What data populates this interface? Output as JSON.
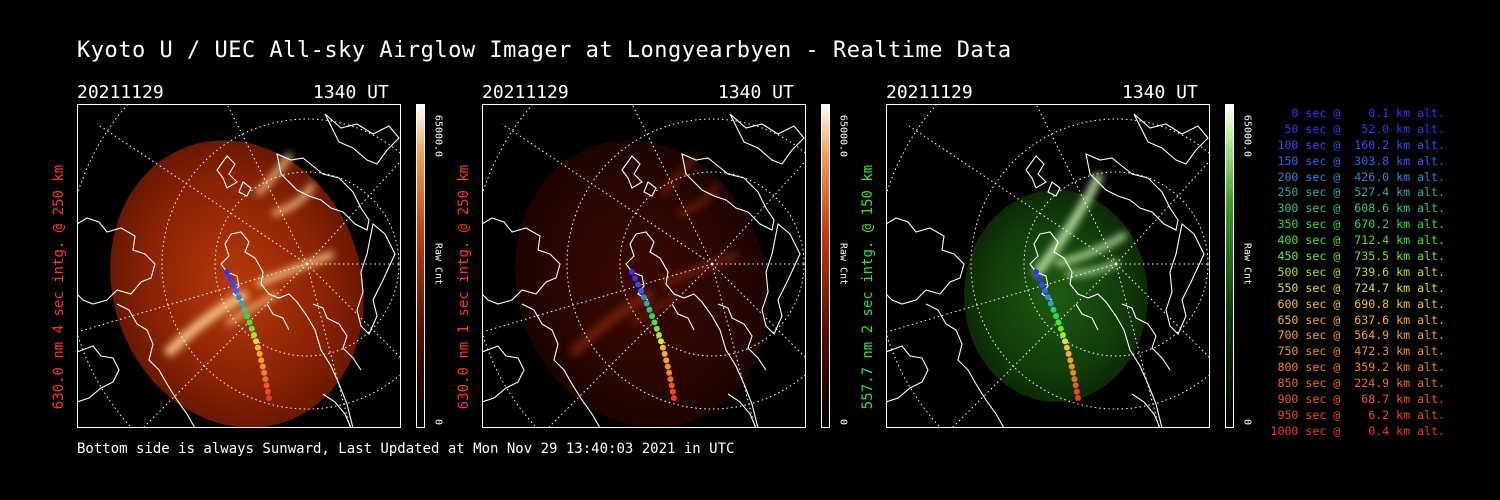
{
  "title": "Kyoto U / UEC All-sky Airglow Imager at Longyearbyen - Realtime Data",
  "footer": "Bottom side is always Sunward, Last Updated at Mon Nov 29 13:40:03 2021 in UTC",
  "panels": [
    {
      "date": "20211129",
      "time": "1340 UT",
      "ylabel": "630.0 nm 4 sec intg. @ 250 km",
      "label_color": "#ff3a1a",
      "cbar_max": "65000.0",
      "cbar_min": "0",
      "cbar_unit": "Raw Cnt",
      "theme": "red",
      "intensity": "high"
    },
    {
      "date": "20211129",
      "time": "1340 UT",
      "ylabel": "630.0 nm 1 sec intg. @ 250 km",
      "label_color": "#ff3a1a",
      "cbar_max": "65000.0",
      "cbar_min": "0",
      "cbar_unit": "Raw Cnt",
      "theme": "red",
      "intensity": "low"
    },
    {
      "date": "20211129",
      "time": "1340 UT",
      "ylabel": "557.7 nm 2 sec intg. @ 150 km",
      "label_color": "#39e030",
      "cbar_max": "65000.0",
      "cbar_min": "0",
      "cbar_unit": "Raw Cnt",
      "theme": "green",
      "intensity": "medium"
    }
  ],
  "legend": [
    {
      "text": "0 sec @    0.1 km alt.",
      "color": "#3a30ff"
    },
    {
      "text": "50 sec @   52.0 km alt.",
      "color": "#3a30ff"
    },
    {
      "text": "100 sec @  160.2 km alt.",
      "color": "#2f4cff"
    },
    {
      "text": "150 sec @  303.8 km alt.",
      "color": "#2f62ff"
    },
    {
      "text": "200 sec @  426.0 km alt.",
      "color": "#2f86d8"
    },
    {
      "text": "250 sec @  527.4 km alt.",
      "color": "#2fa6b0"
    },
    {
      "text": "300 sec @  608.6 km alt.",
      "color": "#2fc88a"
    },
    {
      "text": "350 sec @  670.2 km alt.",
      "color": "#35dc3a"
    },
    {
      "text": "400 sec @  712.4 km alt.",
      "color": "#49e530"
    },
    {
      "text": "450 sec @  735.5 km alt.",
      "color": "#74e52c"
    },
    {
      "text": "500 sec @  739.6 km alt.",
      "color": "#a8e52c"
    },
    {
      "text": "550 sec @  724.7 km alt.",
      "color": "#e0e02c"
    },
    {
      "text": "600 sec @  690.8 km alt.",
      "color": "#f2c02c"
    },
    {
      "text": "650 sec @  637.6 km alt.",
      "color": "#f2b02c"
    },
    {
      "text": "700 sec @  564.9 km alt.",
      "color": "#f2a02c"
    },
    {
      "text": "750 sec @  472.3 km alt.",
      "color": "#f2902c"
    },
    {
      "text": "800 sec @  359.2 km alt.",
      "color": "#f0802c"
    },
    {
      "text": "850 sec @  224.9 km alt.",
      "color": "#f06a2c"
    },
    {
      "text": "900 sec @   68.7 km alt.",
      "color": "#ef582c"
    },
    {
      "text": "950 sec @    6.2 km alt.",
      "color": "#ee482c"
    },
    {
      "text": "1000 sec @    0.4 km alt.",
      "color": "#ee3a2c"
    }
  ]
}
